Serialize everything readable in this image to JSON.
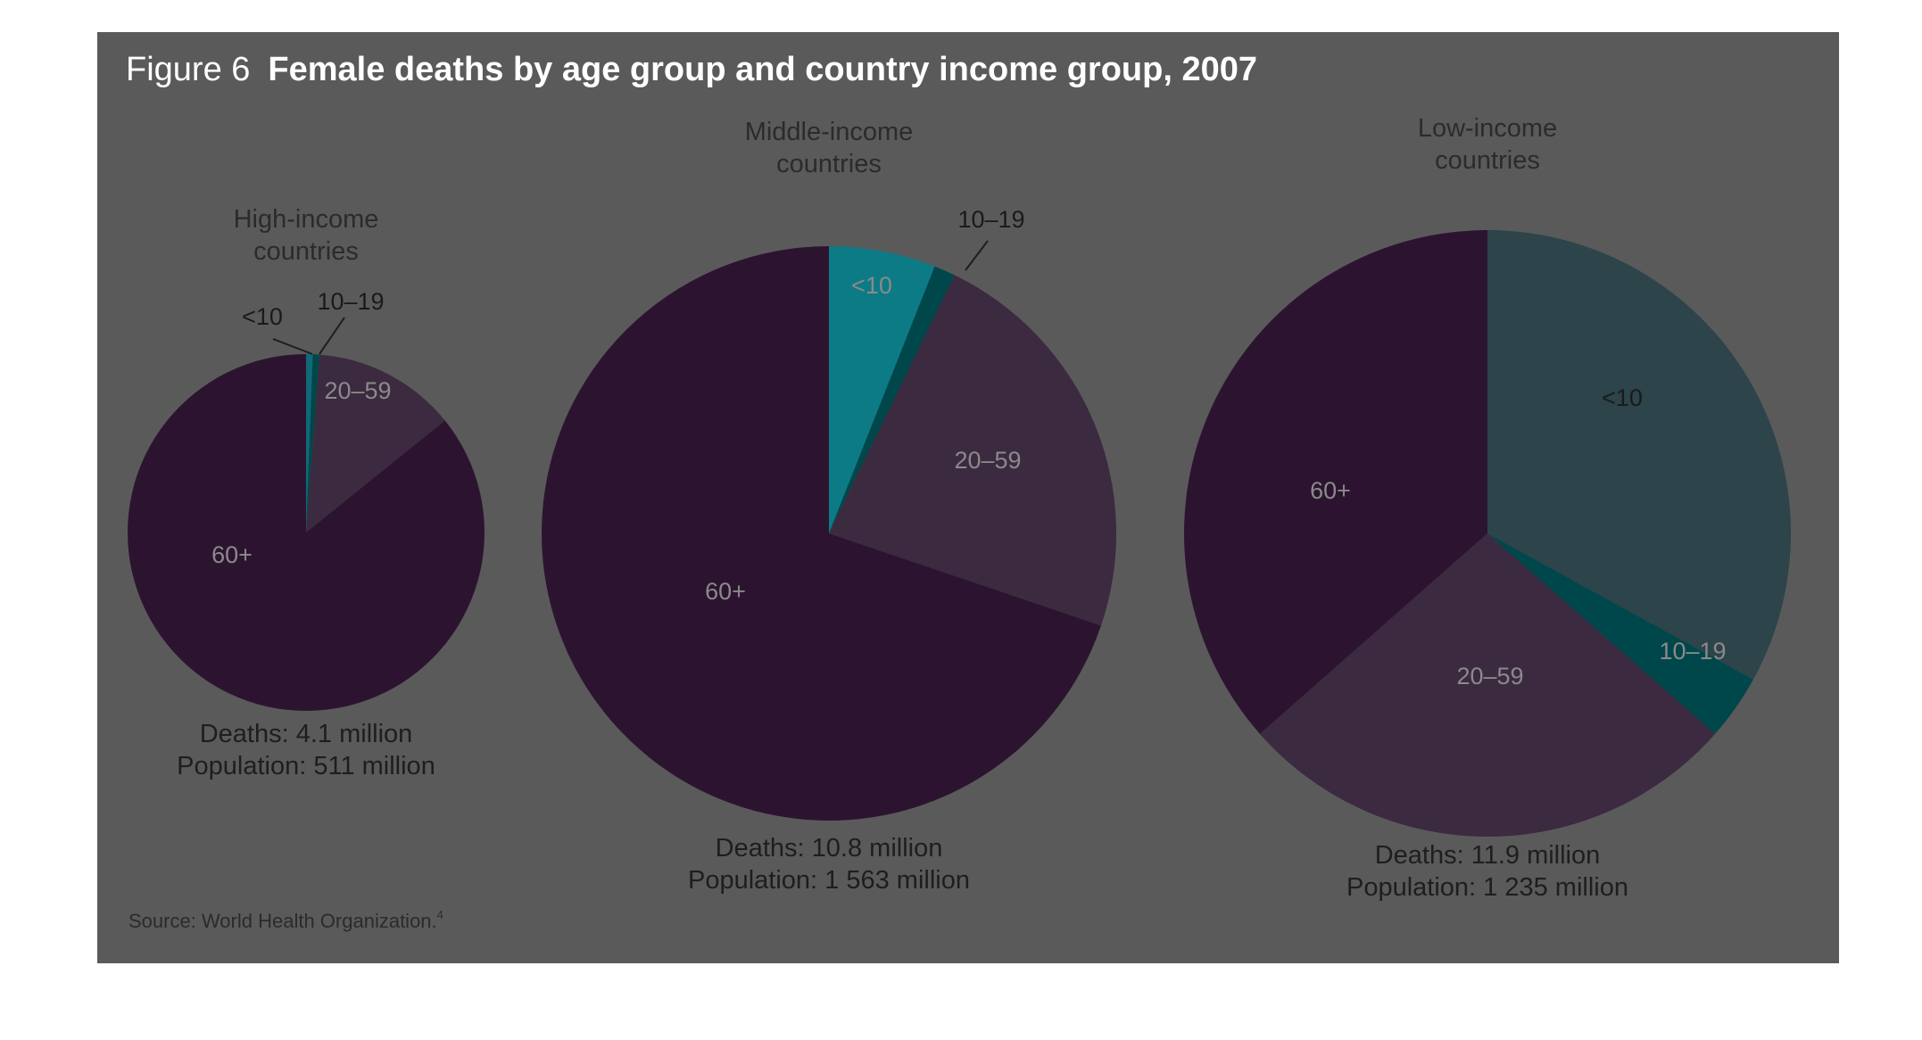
{
  "figure": {
    "label": "Figure 6",
    "title": "Female deaths by age group and country income group, 2007",
    "source": "Source: World Health Organization.",
    "source_ref": "4",
    "panel_color": "#5a5a5a"
  },
  "chart_data": [
    {
      "type": "pie",
      "group_lines": [
        "High-income",
        "countries"
      ],
      "deaths_text": "Deaths: 4.1 million",
      "population_text": "Population: 511 million",
      "deaths_million": 4.1,
      "population_million": 511,
      "slices": [
        {
          "label": "<10",
          "share": 0.006,
          "color": "#0e6a76"
        },
        {
          "label": "10–19",
          "share": 0.006,
          "color": "#00474c"
        },
        {
          "label": "20–59",
          "share": 0.13,
          "color": "#3c2a40"
        },
        {
          "label": "60+",
          "share": 0.858,
          "color": "#2c1430"
        }
      ]
    },
    {
      "type": "pie",
      "group_lines": [
        "Middle-income",
        "countries"
      ],
      "deaths_text": "Deaths: 10.8 million",
      "population_text": "Population: 1 563 million",
      "deaths_million": 10.8,
      "population_million": 1563,
      "slices": [
        {
          "label": "<10",
          "share": 0.06,
          "color": "#0c7b86"
        },
        {
          "label": "10–19",
          "share": 0.012,
          "color": "#00474c"
        },
        {
          "label": "20–59",
          "share": 0.23,
          "color": "#3c2a40"
        },
        {
          "label": "60+",
          "share": 0.698,
          "color": "#2c1430"
        }
      ]
    },
    {
      "type": "pie",
      "group_lines": [
        "Low-income",
        "countries"
      ],
      "deaths_text": "Deaths: 11.9 million",
      "population_text": "Population: 1 235 million",
      "deaths_million": 11.9,
      "population_million": 1235,
      "slices": [
        {
          "label": "<10",
          "share": 0.33,
          "color": "#2c444a"
        },
        {
          "label": "10–19",
          "share": 0.035,
          "color": "#00474c"
        },
        {
          "label": "20–59",
          "share": 0.27,
          "color": "#3c2a40"
        },
        {
          "label": "60+",
          "share": 0.365,
          "color": "#2c1430"
        }
      ]
    }
  ]
}
